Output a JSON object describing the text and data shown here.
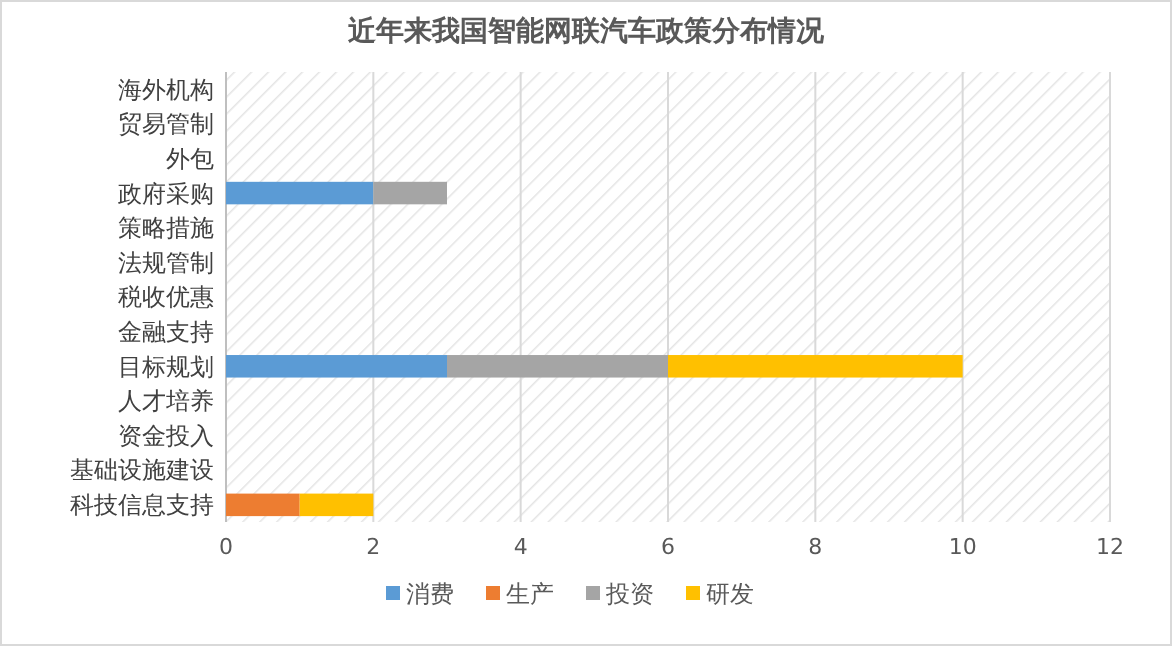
{
  "chart_data": {
    "type": "bar",
    "title": "近年来我国智能网联汽车政策分布情况",
    "orientation": "horizontal",
    "stacked": true,
    "categories": [
      "海外机构",
      "贸易管制",
      "外包",
      "政府采购",
      "策略措施",
      "法规管制",
      "税收优惠",
      "金融支持",
      "目标规划",
      "人才培养",
      "资金投入",
      "基础设施建设",
      "科技信息支持"
    ],
    "series": [
      {
        "name": "消费",
        "color": "#5b9bd5",
        "values": [
          0,
          0,
          0,
          2,
          0,
          0,
          0,
          0,
          3,
          0,
          0,
          0,
          0
        ]
      },
      {
        "name": "生产",
        "color": "#ed7d31",
        "values": [
          0,
          0,
          0,
          0,
          0,
          0,
          0,
          0,
          0,
          0,
          0,
          0,
          1
        ]
      },
      {
        "name": "投资",
        "color": "#a5a5a5",
        "values": [
          0,
          0,
          0,
          1,
          0,
          0,
          0,
          0,
          3,
          0,
          0,
          0,
          0
        ]
      },
      {
        "name": "研发",
        "color": "#ffc000",
        "values": [
          0,
          0,
          0,
          0,
          0,
          0,
          0,
          0,
          4,
          0,
          0,
          0,
          1
        ]
      }
    ],
    "xlim": [
      0,
      12
    ],
    "xticks": [
      0,
      2,
      4,
      6,
      8,
      10,
      12
    ],
    "grid": "x",
    "legend": "bottom"
  }
}
